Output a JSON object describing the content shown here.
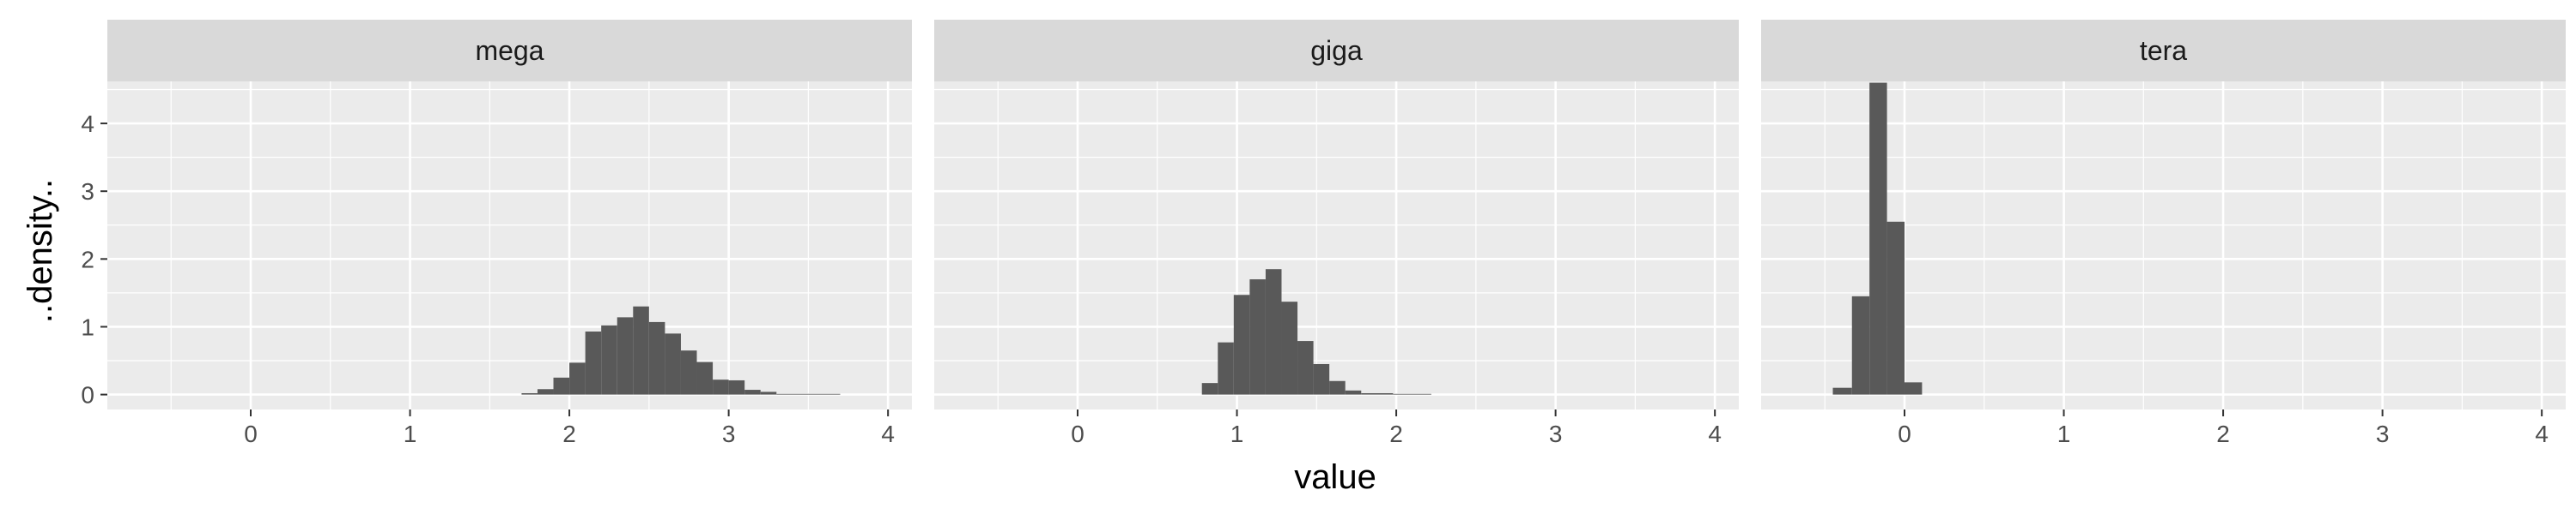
{
  "chart_data": {
    "type": "histogram",
    "xlabel": "value",
    "ylabel": "..density..",
    "xlim": [
      -0.9,
      4.15
    ],
    "ylim": [
      -0.22,
      4.62
    ],
    "x_ticks": [
      "0",
      "1",
      "2",
      "3",
      "4"
    ],
    "x_tick_values": [
      0,
      1,
      2,
      3,
      4
    ],
    "y_ticks": [
      "0",
      "1",
      "2",
      "3",
      "4"
    ],
    "y_tick_values": [
      0,
      1,
      2,
      3,
      4
    ],
    "grid": true,
    "colors": {
      "panel_bg": "#ebebeb",
      "strip_bg": "#d9d9d9",
      "grid": "#ffffff",
      "bar": "#595959"
    },
    "panels": [
      {
        "label": "mega",
        "bins": [
          {
            "x0": 1.7,
            "x1": 1.8,
            "density": 0.02
          },
          {
            "x0": 1.8,
            "x1": 1.9,
            "density": 0.08
          },
          {
            "x0": 1.9,
            "x1": 2.0,
            "density": 0.25
          },
          {
            "x0": 2.0,
            "x1": 2.1,
            "density": 0.47
          },
          {
            "x0": 2.1,
            "x1": 2.2,
            "density": 0.93
          },
          {
            "x0": 2.2,
            "x1": 2.3,
            "density": 1.02
          },
          {
            "x0": 2.3,
            "x1": 2.4,
            "density": 1.14
          },
          {
            "x0": 2.4,
            "x1": 2.5,
            "density": 1.3
          },
          {
            "x0": 2.5,
            "x1": 2.6,
            "density": 1.07
          },
          {
            "x0": 2.6,
            "x1": 2.7,
            "density": 0.9
          },
          {
            "x0": 2.7,
            "x1": 2.8,
            "density": 0.65
          },
          {
            "x0": 2.8,
            "x1": 2.9,
            "density": 0.48
          },
          {
            "x0": 2.9,
            "x1": 3.0,
            "density": 0.22
          },
          {
            "x0": 3.0,
            "x1": 3.1,
            "density": 0.21
          },
          {
            "x0": 3.1,
            "x1": 3.2,
            "density": 0.07
          },
          {
            "x0": 3.2,
            "x1": 3.3,
            "density": 0.04
          },
          {
            "x0": 3.3,
            "x1": 3.5,
            "density": 0.01
          },
          {
            "x0": 3.5,
            "x1": 3.7,
            "density": 0.01
          }
        ]
      },
      {
        "label": "giga",
        "bins": [
          {
            "x0": 0.78,
            "x1": 0.88,
            "density": 0.17
          },
          {
            "x0": 0.88,
            "x1": 0.98,
            "density": 0.77
          },
          {
            "x0": 0.98,
            "x1": 1.08,
            "density": 1.47
          },
          {
            "x0": 1.08,
            "x1": 1.18,
            "density": 1.7
          },
          {
            "x0": 1.18,
            "x1": 1.28,
            "density": 1.85
          },
          {
            "x0": 1.28,
            "x1": 1.38,
            "density": 1.37
          },
          {
            "x0": 1.38,
            "x1": 1.48,
            "density": 0.79
          },
          {
            "x0": 1.48,
            "x1": 1.58,
            "density": 0.45
          },
          {
            "x0": 1.58,
            "x1": 1.68,
            "density": 0.2
          },
          {
            "x0": 1.68,
            "x1": 1.78,
            "density": 0.06
          },
          {
            "x0": 1.78,
            "x1": 1.98,
            "density": 0.02
          },
          {
            "x0": 1.98,
            "x1": 2.22,
            "density": 0.01
          }
        ]
      },
      {
        "label": "tera",
        "bins": [
          {
            "x0": -0.45,
            "x1": -0.33,
            "density": 0.1
          },
          {
            "x0": -0.33,
            "x1": -0.22,
            "density": 1.45
          },
          {
            "x0": -0.22,
            "x1": -0.11,
            "density": 4.6
          },
          {
            "x0": -0.11,
            "x1": 0.0,
            "density": 2.55
          },
          {
            "x0": 0.0,
            "x1": 0.11,
            "density": 0.18
          }
        ]
      }
    ]
  }
}
